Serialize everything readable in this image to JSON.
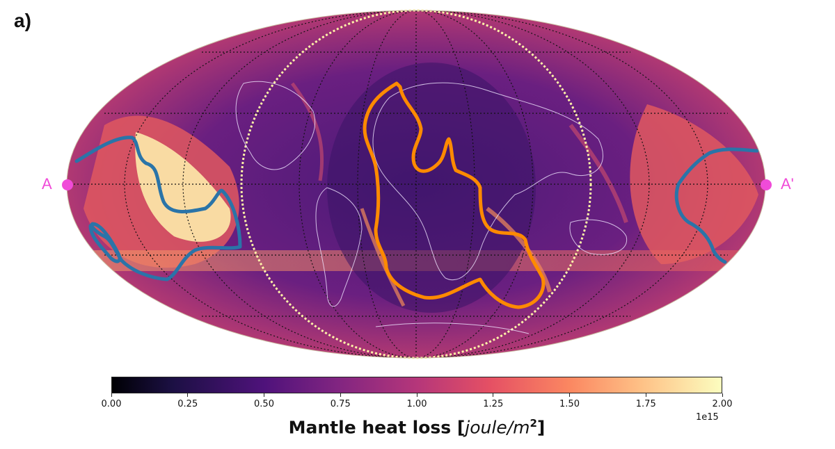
{
  "panel_label": "a)",
  "points": {
    "left": "A",
    "right": "A'"
  },
  "colorbar": {
    "ticks": [
      "0.00",
      "0.25",
      "0.50",
      "0.75",
      "1.00",
      "1.25",
      "1.50",
      "1.75",
      "2.00"
    ],
    "offset": "1e15",
    "label_bold": "Mantle heat loss [",
    "label_unit": "joule/m",
    "label_exp": "2",
    "label_close": "]",
    "min": 0,
    "max": 2,
    "colormap": "magma"
  },
  "colors": {
    "outline_left": "#2a74a8",
    "outline_center": "#ff8a00",
    "point_marker": "#f04bd8",
    "hemisphere_boundary": "#fff3a8"
  },
  "projection": "mollweide"
}
